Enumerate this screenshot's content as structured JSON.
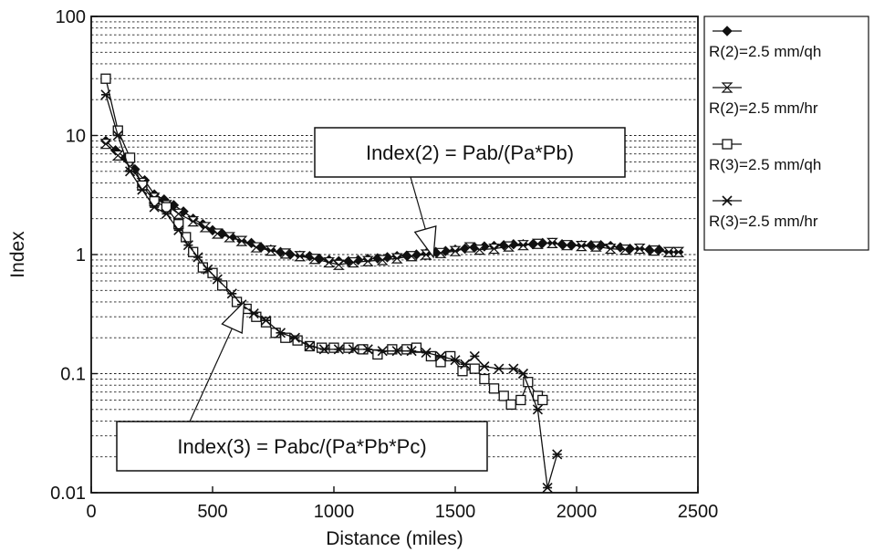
{
  "chart_data": {
    "type": "line",
    "title": "",
    "xlabel": "Distance (miles)",
    "ylabel": "Index",
    "xlim": [
      0,
      2500
    ],
    "ylim": [
      0.01,
      100
    ],
    "yscale": "log",
    "xticks": [
      "0",
      "500",
      "1000",
      "1500",
      "2000",
      "2500"
    ],
    "yticks": [
      "0.01",
      "0.1",
      "1",
      "10",
      "100"
    ],
    "grid": "horizontal dotted (major and minor)",
    "legend_position": "right, outside the plot",
    "series": [
      {
        "name": "R(2)=2.5 mm/qh",
        "marker": "filled-diamond",
        "points": [
          [
            60,
            9
          ],
          [
            100,
            7.5
          ],
          [
            140,
            6.5
          ],
          [
            180,
            5.2
          ],
          [
            220,
            4.2
          ],
          [
            260,
            3.2
          ],
          [
            300,
            2.9
          ],
          [
            340,
            2.6
          ],
          [
            380,
            2.3
          ],
          [
            420,
            2
          ],
          [
            460,
            1.8
          ],
          [
            500,
            1.6
          ],
          [
            540,
            1.5
          ],
          [
            580,
            1.4
          ],
          [
            620,
            1.3
          ],
          [
            660,
            1.25
          ],
          [
            700,
            1.15
          ],
          [
            740,
            1.1
          ],
          [
            780,
            1.05
          ],
          [
            820,
            1
          ],
          [
            860,
            0.98
          ],
          [
            900,
            0.97
          ],
          [
            940,
            0.92
          ],
          [
            980,
            0.9
          ],
          [
            1020,
            0.88
          ],
          [
            1060,
            0.88
          ],
          [
            1100,
            0.9
          ],
          [
            1140,
            0.92
          ],
          [
            1180,
            0.93
          ],
          [
            1220,
            0.95
          ],
          [
            1260,
            0.97
          ],
          [
            1300,
            0.98
          ],
          [
            1340,
            1
          ],
          [
            1380,
            1.02
          ],
          [
            1420,
            1.05
          ],
          [
            1460,
            1.07
          ],
          [
            1500,
            1.1
          ],
          [
            1540,
            1.12
          ],
          [
            1580,
            1.15
          ],
          [
            1620,
            1.17
          ],
          [
            1660,
            1.18
          ],
          [
            1700,
            1.2
          ],
          [
            1740,
            1.22
          ],
          [
            1780,
            1.22
          ],
          [
            1820,
            1.22
          ],
          [
            1860,
            1.25
          ],
          [
            1900,
            1.25
          ],
          [
            1940,
            1.22
          ],
          [
            1980,
            1.2
          ],
          [
            2020,
            1.2
          ],
          [
            2060,
            1.2
          ],
          [
            2100,
            1.2
          ],
          [
            2140,
            1.18
          ],
          [
            2180,
            1.15
          ],
          [
            2220,
            1.12
          ],
          [
            2260,
            1.12
          ],
          [
            2300,
            1.1
          ],
          [
            2340,
            1.1
          ],
          [
            2380,
            1.05
          ],
          [
            2420,
            1.05
          ]
        ]
      },
      {
        "name": "R(2)=2.5 mm/hr",
        "marker": "hourglass",
        "points": [
          [
            60,
            8.5
          ],
          [
            110,
            6.8
          ],
          [
            160,
            5.5
          ],
          [
            210,
            4
          ],
          [
            260,
            3
          ],
          [
            310,
            2.6
          ],
          [
            360,
            2.2
          ],
          [
            420,
            1.9
          ],
          [
            470,
            1.7
          ],
          [
            520,
            1.5
          ],
          [
            570,
            1.4
          ],
          [
            620,
            1.3
          ],
          [
            680,
            1.15
          ],
          [
            740,
            1.08
          ],
          [
            800,
            1.02
          ],
          [
            860,
            0.97
          ],
          [
            920,
            0.92
          ],
          [
            980,
            0.86
          ],
          [
            1020,
            0.82
          ],
          [
            1080,
            0.86
          ],
          [
            1140,
            0.88
          ],
          [
            1200,
            0.9
          ],
          [
            1260,
            0.93
          ],
          [
            1320,
            0.97
          ],
          [
            1380,
            1
          ],
          [
            1440,
            1.03
          ],
          [
            1500,
            1.07
          ],
          [
            1560,
            1.15
          ],
          [
            1600,
            1.1
          ],
          [
            1660,
            1.12
          ],
          [
            1720,
            1.17
          ],
          [
            1780,
            1.2
          ],
          [
            1840,
            1.23
          ],
          [
            1900,
            1.25
          ],
          [
            1960,
            1.2
          ],
          [
            2020,
            1.18
          ],
          [
            2080,
            1.17
          ],
          [
            2140,
            1.12
          ],
          [
            2200,
            1.1
          ],
          [
            2260,
            1.12
          ],
          [
            2320,
            1.08
          ],
          [
            2380,
            1.05
          ],
          [
            2420,
            1.05
          ]
        ]
      },
      {
        "name": "R(3)=2.5 mm/qh",
        "marker": "open-square",
        "points": [
          [
            60,
            30
          ],
          [
            110,
            11
          ],
          [
            160,
            6.5
          ],
          [
            210,
            3.8
          ],
          [
            260,
            2.8
          ],
          [
            310,
            2.5
          ],
          [
            360,
            1.8
          ],
          [
            390,
            1.4
          ],
          [
            420,
            1.05
          ],
          [
            460,
            0.78
          ],
          [
            500,
            0.7
          ],
          [
            540,
            0.55
          ],
          [
            600,
            0.4
          ],
          [
            640,
            0.35
          ],
          [
            680,
            0.3
          ],
          [
            720,
            0.27
          ],
          [
            760,
            0.22
          ],
          [
            800,
            0.2
          ],
          [
            850,
            0.19
          ],
          [
            900,
            0.17
          ],
          [
            950,
            0.165
          ],
          [
            1000,
            0.165
          ],
          [
            1060,
            0.165
          ],
          [
            1120,
            0.16
          ],
          [
            1180,
            0.145
          ],
          [
            1240,
            0.16
          ],
          [
            1300,
            0.16
          ],
          [
            1340,
            0.165
          ],
          [
            1400,
            0.14
          ],
          [
            1440,
            0.125
          ],
          [
            1480,
            0.14
          ],
          [
            1530,
            0.105
          ],
          [
            1580,
            0.11
          ],
          [
            1620,
            0.09
          ],
          [
            1660,
            0.075
          ],
          [
            1700,
            0.065
          ],
          [
            1730,
            0.055
          ],
          [
            1770,
            0.06
          ],
          [
            1800,
            0.085
          ],
          [
            1840,
            0.065
          ],
          [
            1860,
            0.06
          ]
        ]
      },
      {
        "name": "R(3)=2.5 mm/hr",
        "marker": "asterisk",
        "points": [
          [
            60,
            22
          ],
          [
            110,
            10
          ],
          [
            160,
            5
          ],
          [
            210,
            3.5
          ],
          [
            260,
            2.5
          ],
          [
            310,
            2.2
          ],
          [
            360,
            1.6
          ],
          [
            400,
            1.2
          ],
          [
            440,
            0.95
          ],
          [
            480,
            0.75
          ],
          [
            520,
            0.62
          ],
          [
            580,
            0.47
          ],
          [
            620,
            0.38
          ],
          [
            670,
            0.32
          ],
          [
            720,
            0.28
          ],
          [
            780,
            0.22
          ],
          [
            840,
            0.2
          ],
          [
            900,
            0.17
          ],
          [
            960,
            0.16
          ],
          [
            1020,
            0.16
          ],
          [
            1080,
            0.16
          ],
          [
            1140,
            0.16
          ],
          [
            1200,
            0.155
          ],
          [
            1260,
            0.155
          ],
          [
            1320,
            0.155
          ],
          [
            1380,
            0.15
          ],
          [
            1440,
            0.14
          ],
          [
            1500,
            0.13
          ],
          [
            1540,
            0.12
          ],
          [
            1580,
            0.14
          ],
          [
            1620,
            0.115
          ],
          [
            1680,
            0.11
          ],
          [
            1740,
            0.11
          ],
          [
            1780,
            0.1
          ],
          [
            1840,
            0.05
          ],
          [
            1880,
            0.011
          ],
          [
            1920,
            0.021
          ]
        ]
      }
    ],
    "annotations": [
      {
        "text": "Index(2) = Pab/(Pa*Pb)",
        "points_to": [
          1410,
          0.95
        ]
      },
      {
        "text": "Index(3) = Pabc/(Pa*Pb*Pc)",
        "points_to": [
          630,
          0.4
        ]
      }
    ]
  }
}
